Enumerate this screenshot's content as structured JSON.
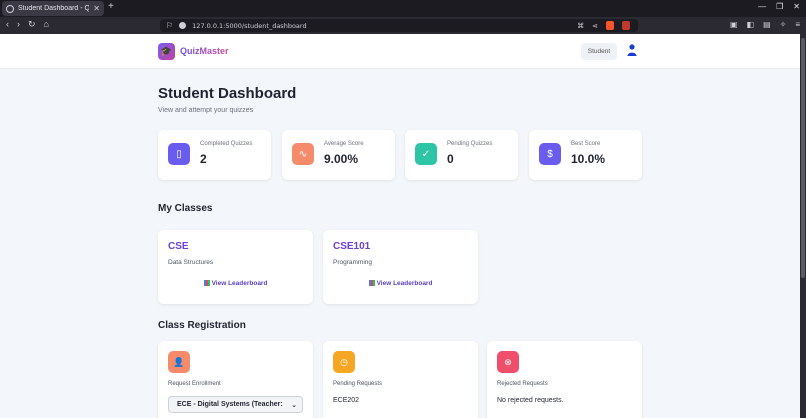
{
  "browser": {
    "tab_title": "Student Dashboard - Quiz",
    "url": "127.0.0.1:5000/student_dashboard"
  },
  "header": {
    "brand": "QuizMaster",
    "role": "Student"
  },
  "page": {
    "title": "Student Dashboard",
    "subtitle": "View and attempt your quizzes"
  },
  "stats": [
    {
      "label": "Completed Quizzes",
      "value": "2",
      "icon": "file-icon",
      "color": "#6b5cf0"
    },
    {
      "label": "Average Score",
      "value": "9.00%",
      "icon": "activity-icon",
      "color": "#f58b6b"
    },
    {
      "label": "Pending Quizzes",
      "value": "0",
      "icon": "check-circle-icon",
      "color": "#2ec4a6"
    },
    {
      "label": "Best Score",
      "value": "10.0%",
      "icon": "dollar-icon",
      "color": "#6b5cf0"
    }
  ],
  "classes": {
    "heading": "My Classes",
    "items": [
      {
        "name": "CSE",
        "description": "Data Structures",
        "link": "View Leaderboard"
      },
      {
        "name": "CSE101",
        "description": "Programming",
        "link": "View Leaderboard"
      }
    ]
  },
  "registration": {
    "heading": "Class Registration",
    "request": {
      "label": "Request Enrollment",
      "selected": "ECE - Digital Systems (Teacher:",
      "icon": "user-plus-icon",
      "color": "#f58b6b"
    },
    "pending": {
      "label": "Pending Requests",
      "value": "ECE202",
      "icon": "clock-icon",
      "color": "#f5a623"
    },
    "rejected": {
      "label": "Rejected Requests",
      "value": "No rejected requests.",
      "icon": "x-circle-icon",
      "color": "#ef4f6a"
    }
  }
}
